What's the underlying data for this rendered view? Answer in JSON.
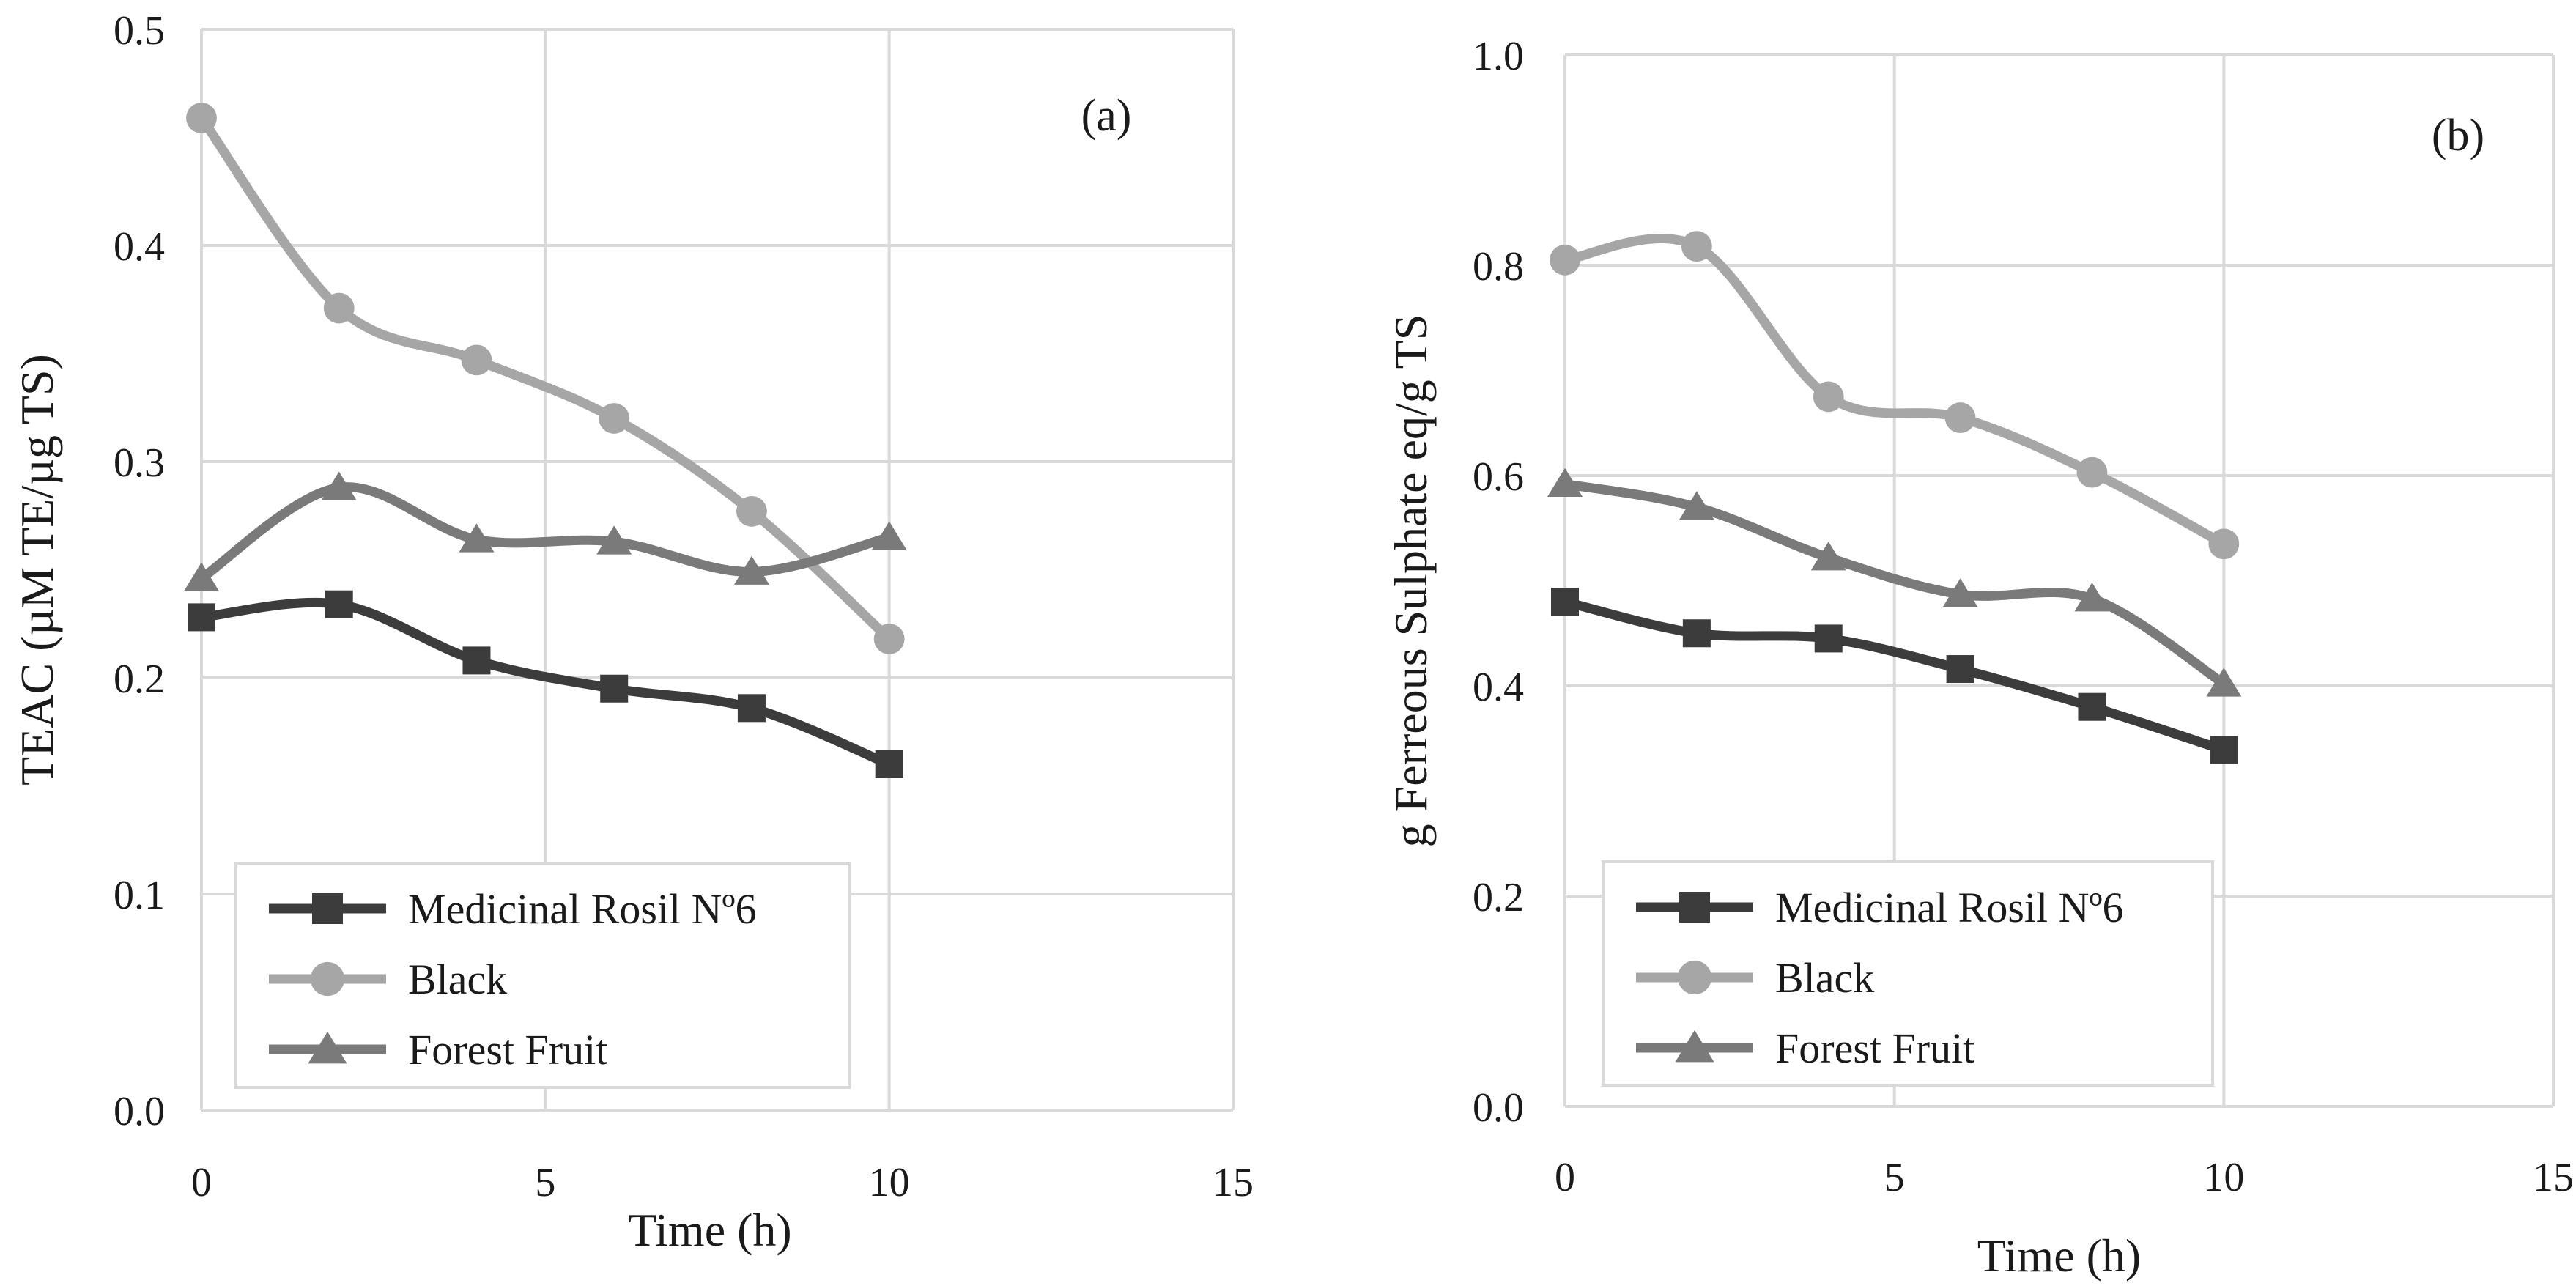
{
  "chart_data": [
    {
      "type": "line",
      "panel_label": "(a)",
      "xlabel": "Time (h)",
      "ylabel": "TEAC (µM TE/µg TS)",
      "xlim": [
        0,
        15
      ],
      "ylim": [
        0,
        0.5
      ],
      "xticks": [
        0,
        5,
        10,
        15
      ],
      "xtick_labels": [
        "0",
        "5",
        "10",
        "15"
      ],
      "yticks": [
        0,
        0.1,
        0.2,
        0.3,
        0.4,
        0.5
      ],
      "ytick_labels": [
        "0.0",
        "0.1",
        "0.2",
        "0.3",
        "0.4",
        "0.5"
      ],
      "grid": true,
      "legend_position": "bottom-left",
      "x": [
        0,
        2,
        4,
        6,
        8,
        10
      ],
      "series": [
        {
          "name": "Medicinal Rosil Nº6",
          "marker": "square",
          "color": "#3c3c3c",
          "values": [
            0.228,
            0.234,
            0.208,
            0.195,
            0.186,
            0.16
          ]
        },
        {
          "name": "Black",
          "marker": "circle",
          "color": "#a6a6a6",
          "values": [
            0.459,
            0.371,
            0.347,
            0.32,
            0.277,
            0.218
          ]
        },
        {
          "name": "Forest Fruit",
          "marker": "triangle",
          "color": "#7a7a7a",
          "values": [
            0.246,
            0.288,
            0.264,
            0.263,
            0.249,
            0.265
          ]
        }
      ]
    },
    {
      "type": "line",
      "panel_label": "(b)",
      "xlabel": "Time (h)",
      "ylabel": "g Ferreous Sulphate eq/g TS",
      "xlim": [
        0,
        15
      ],
      "ylim": [
        0,
        1.0
      ],
      "xticks": [
        0,
        5,
        10,
        15
      ],
      "xtick_labels": [
        "0",
        "5",
        "10",
        "15"
      ],
      "yticks": [
        0,
        0.2,
        0.4,
        0.6,
        0.8,
        1.0
      ],
      "ytick_labels": [
        "0.0",
        "0.2",
        "0.4",
        "0.6",
        "0.8",
        "1.0"
      ],
      "grid": true,
      "legend_position": "bottom-left",
      "x": [
        0,
        2,
        4,
        6,
        8,
        10
      ],
      "series": [
        {
          "name": "Medicinal Rosil Nº6",
          "marker": "square",
          "color": "#3c3c3c",
          "values": [
            0.48,
            0.45,
            0.445,
            0.416,
            0.38,
            0.339
          ]
        },
        {
          "name": "Black",
          "marker": "circle",
          "color": "#a6a6a6",
          "values": [
            0.805,
            0.818,
            0.675,
            0.655,
            0.603,
            0.535
          ]
        },
        {
          "name": "Forest Fruit",
          "marker": "triangle",
          "color": "#7a7a7a",
          "values": [
            0.592,
            0.57,
            0.522,
            0.487,
            0.483,
            0.402
          ]
        }
      ]
    }
  ]
}
